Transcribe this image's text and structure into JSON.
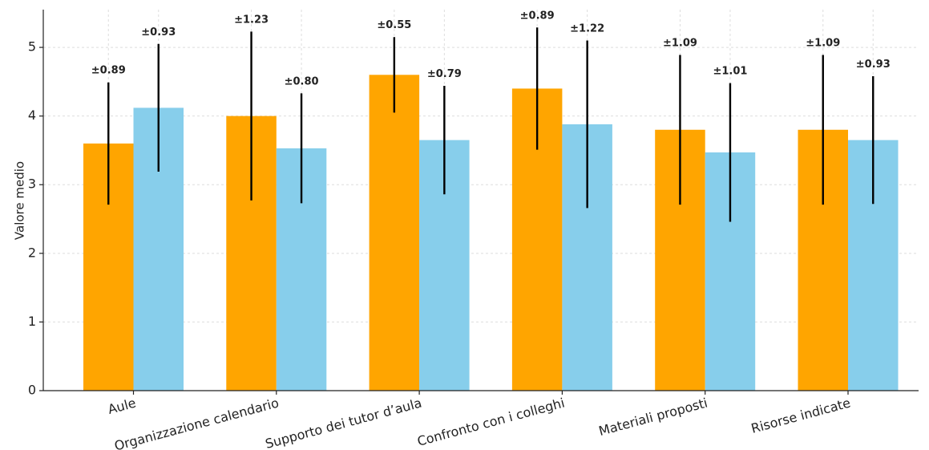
{
  "chart_data": {
    "type": "bar",
    "ylabel": "Valore medio",
    "xlabel": "",
    "title": "",
    "ylim": [
      0,
      5.55
    ],
    "yticks": [
      0,
      1,
      2,
      3,
      4,
      5
    ],
    "grid": true,
    "legend": "none",
    "categories": [
      "Aule",
      "Organizzazione calendario",
      "Supporto dei tutor d’aula",
      "Confronto con i colleghi",
      "Materiali proposti",
      "Risorse indicate"
    ],
    "series": [
      {
        "color": "#FFA500",
        "values": [
          3.6,
          4.0,
          4.6,
          4.4,
          3.8,
          3.8
        ],
        "errors": [
          0.89,
          1.23,
          0.55,
          0.89,
          1.09,
          1.09
        ],
        "error_labels": [
          "±0.89",
          "±1.23",
          "±0.55",
          "±0.89",
          "±1.09",
          "±1.09"
        ]
      },
      {
        "color": "#87CEEB",
        "values": [
          4.12,
          3.53,
          3.65,
          3.88,
          3.47,
          3.65
        ],
        "errors": [
          0.93,
          0.8,
          0.79,
          1.22,
          1.01,
          0.93
        ],
        "error_labels": [
          "±0.93",
          "±0.80",
          "±0.79",
          "±1.22",
          "±1.01",
          "±0.93"
        ]
      }
    ]
  }
}
